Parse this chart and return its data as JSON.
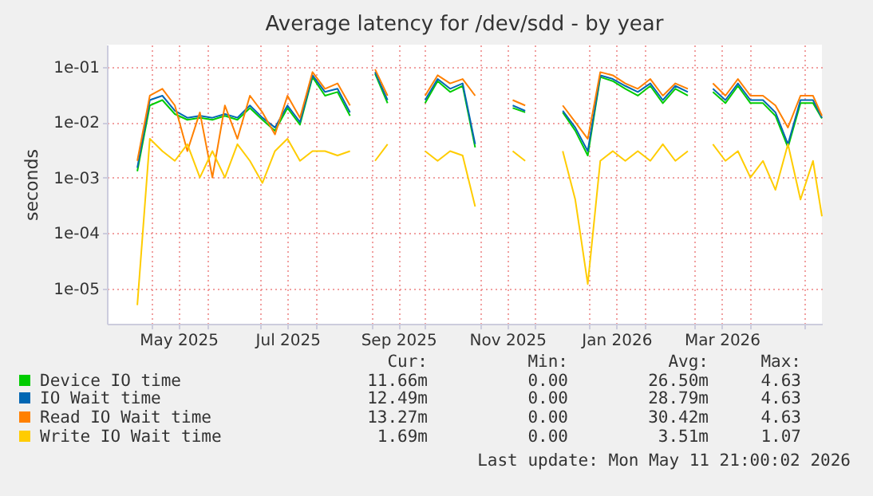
{
  "chart_data": {
    "type": "line",
    "title": "Average latency for /dev/sdd - by year",
    "ylabel": "seconds",
    "log": "y",
    "grid": true,
    "legend": "bottom",
    "x": [
      "2025-04-23",
      "2025-04-30",
      "2025-05-07",
      "2025-05-14",
      "2025-05-21",
      "2025-05-28",
      "2025-06-04",
      "2025-06-11",
      "2025-06-18",
      "2025-06-25",
      "2025-07-02",
      "2025-07-09",
      "2025-07-16",
      "2025-07-23",
      "2025-07-30",
      "2025-08-06",
      "2025-08-13",
      "2025-08-20",
      "2025-08-27",
      "2025-09-03",
      "2025-09-10",
      "2025-09-17",
      "2025-09-24",
      "2025-10-01",
      "2025-10-08",
      "2025-10-15",
      "2025-10-22",
      "2025-10-29",
      "2025-11-05",
      "2025-11-12",
      "2025-11-19",
      "2025-11-26",
      "2025-12-03",
      "2025-12-10",
      "2025-12-17",
      "2025-12-24",
      "2025-12-31",
      "2026-01-07",
      "2026-01-14",
      "2026-01-21",
      "2026-01-28",
      "2026-02-04",
      "2026-02-11",
      "2026-02-18",
      "2026-02-25",
      "2026-03-04",
      "2026-03-11",
      "2026-03-18",
      "2026-03-25",
      "2026-04-01",
      "2026-04-08",
      "2026-04-15",
      "2026-04-22",
      "2026-04-29",
      "2026-05-06",
      "2026-05-11"
    ],
    "xlim": [
      "2025-04-06",
      "2026-05-11"
    ],
    "xticks": [
      {
        "value": "2025-05-01",
        "label": null
      },
      {
        "value": "2025-05-16",
        "label": "May 2025"
      },
      {
        "value": "2025-06-01",
        "label": null
      },
      {
        "value": "2025-07-01",
        "label": null
      },
      {
        "value": "2025-07-16",
        "label": "Jul 2025"
      },
      {
        "value": "2025-08-01",
        "label": null
      },
      {
        "value": "2025-09-01",
        "label": null
      },
      {
        "value": "2025-09-16",
        "label": "Sep 2025"
      },
      {
        "value": "2025-10-01",
        "label": null
      },
      {
        "value": "2025-11-01",
        "label": null
      },
      {
        "value": "2025-11-16",
        "label": "Nov 2025"
      },
      {
        "value": "2025-12-01",
        "label": null
      },
      {
        "value": "2026-01-01",
        "label": null
      },
      {
        "value": "2026-01-16",
        "label": "Jan 2026"
      },
      {
        "value": "2026-02-01",
        "label": null
      },
      {
        "value": "2026-03-01",
        "label": null
      },
      {
        "value": "2026-03-16",
        "label": "Mar 2026"
      },
      {
        "value": "2026-04-01",
        "label": null
      },
      {
        "value": "2026-05-01",
        "label": null
      }
    ],
    "ylim": [
      2.3e-06,
      0.25
    ],
    "yticks": [
      {
        "value": 0.1,
        "label": "1e-01"
      },
      {
        "value": 0.01,
        "label": "1e-02"
      },
      {
        "value": 0.001,
        "label": "1e-03"
      },
      {
        "value": 0.0001,
        "label": "1e-04"
      },
      {
        "value": 1e-05,
        "label": "1e-05"
      }
    ],
    "series": [
      {
        "name": "Device IO time",
        "color": "#00cc00",
        "values": [
          0.0013,
          0.02,
          0.025,
          0.014,
          0.011,
          0.012,
          0.011,
          0.013,
          0.011,
          0.018,
          0.011,
          0.007,
          0.018,
          0.009,
          0.065,
          0.03,
          0.035,
          0.013,
          null,
          0.075,
          0.022,
          null,
          null,
          0.022,
          0.055,
          0.035,
          0.045,
          0.0035,
          null,
          null,
          0.018,
          0.015,
          null,
          null,
          0.015,
          0.007,
          0.0025,
          0.065,
          0.055,
          0.04,
          0.03,
          0.045,
          0.022,
          0.04,
          0.03,
          null,
          0.035,
          0.022,
          0.045,
          0.022,
          0.022,
          0.013,
          0.0035,
          0.022,
          0.022,
          0.0117
        ]
      },
      {
        "name": "IO Wait time",
        "color": "#0066b3",
        "values": [
          0.0015,
          0.025,
          0.03,
          0.016,
          0.012,
          0.013,
          0.012,
          0.014,
          0.012,
          0.02,
          0.012,
          0.008,
          0.02,
          0.01,
          0.07,
          0.035,
          0.04,
          0.015,
          null,
          0.08,
          0.025,
          null,
          null,
          0.025,
          0.06,
          0.04,
          0.05,
          0.004,
          null,
          null,
          0.02,
          0.016,
          null,
          null,
          0.016,
          0.008,
          0.003,
          0.07,
          0.06,
          0.045,
          0.035,
          0.05,
          0.025,
          0.045,
          0.035,
          null,
          0.04,
          0.025,
          0.05,
          0.025,
          0.025,
          0.015,
          0.004,
          0.025,
          0.025,
          0.012
        ]
      },
      {
        "name": "Read IO Wait time",
        "color": "#ff8000",
        "values": [
          0.002,
          0.03,
          0.04,
          0.02,
          0.003,
          0.015,
          0.001,
          0.02,
          0.005,
          0.03,
          0.015,
          0.006,
          0.03,
          0.012,
          0.08,
          0.04,
          0.05,
          0.02,
          null,
          0.09,
          0.03,
          null,
          null,
          0.03,
          0.07,
          0.05,
          0.06,
          0.03,
          null,
          null,
          0.025,
          0.02,
          null,
          null,
          0.02,
          0.01,
          0.005,
          0.08,
          0.07,
          0.05,
          0.04,
          0.06,
          0.03,
          0.05,
          0.04,
          null,
          0.05,
          0.03,
          0.06,
          0.03,
          0.03,
          0.02,
          0.008,
          0.03,
          0.03,
          0.013
        ]
      },
      {
        "name": "Write IO Wait time",
        "color": "#ffcc00",
        "values": [
          5e-06,
          0.005,
          0.003,
          0.002,
          0.004,
          0.001,
          0.003,
          0.001,
          0.004,
          0.002,
          0.0008,
          0.003,
          0.005,
          0.002,
          0.003,
          0.003,
          0.0025,
          0.003,
          null,
          0.002,
          0.004,
          null,
          null,
          0.003,
          0.002,
          0.003,
          0.0025,
          0.0003,
          null,
          null,
          0.003,
          0.002,
          null,
          null,
          0.003,
          0.0004,
          1.2e-05,
          0.002,
          0.003,
          0.002,
          0.003,
          0.002,
          0.004,
          0.002,
          0.003,
          null,
          0.004,
          0.002,
          0.003,
          0.001,
          0.002,
          0.0006,
          0.004,
          0.0004,
          0.002,
          0.0002
        ]
      }
    ],
    "annotations": [
      "Cur:",
      "Min:",
      "Avg:",
      "Max:",
      "11.66m",
      "0.00",
      "26.50m",
      "4.63",
      "12.49m",
      "0.00",
      "28.79m",
      "4.63",
      "13.27m",
      "0.00",
      "30.42m",
      "4.63",
      "1.69m",
      "0.00",
      "3.51m",
      "1.07",
      "Last update: Mon May 11 21:00:02 2026"
    ]
  }
}
